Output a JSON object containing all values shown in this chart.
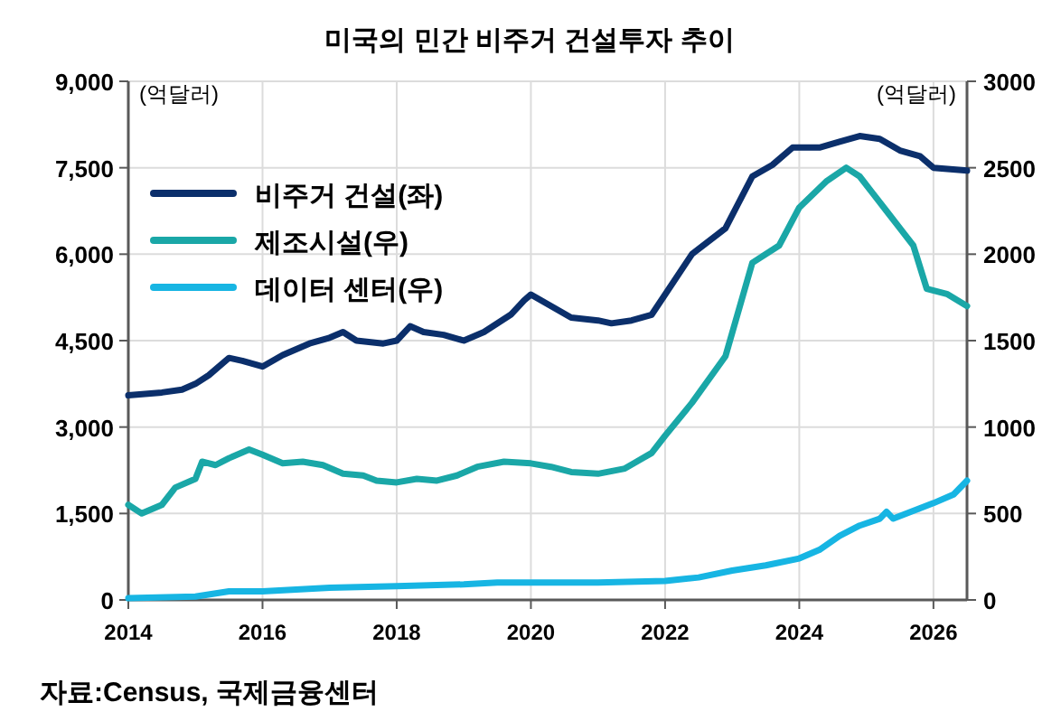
{
  "chart_data": {
    "type": "line",
    "title": "미국의 민간 비주거 건설투자 추이",
    "ylabel": "(억달러)",
    "y2label": "(억달러)",
    "annotations": [
      "자료:Census, 국제금융센터"
    ],
    "xlim": [
      2014,
      2026.5
    ],
    "xticks": [
      2014,
      2016,
      2018,
      2020,
      2022,
      2024,
      2026
    ],
    "ylim": [
      0,
      9000
    ],
    "yticks": [
      0,
      {
        "value": 1500,
        "label": "1,500"
      },
      {
        "value": 3000,
        "label": "3,000"
      },
      {
        "value": 4500,
        "label": "4,500"
      },
      {
        "value": 6000,
        "label": "6,000"
      },
      {
        "value": 7500,
        "label": "7,500"
      },
      {
        "value": 9000,
        "label": "9,000"
      }
    ],
    "y2lim": [
      0,
      3000
    ],
    "y2ticks": [
      0,
      500,
      1000,
      1500,
      2000,
      2500,
      3000
    ],
    "grid": true,
    "legend": "top left",
    "marker": "none",
    "line_style": "solid",
    "series": [
      {
        "name": "비주거 건설(좌)",
        "color": "#0b2f6b",
        "axis": "y",
        "x": [
          2014,
          2014.5,
          2014.8,
          2015.0,
          2015.2,
          2015.5,
          2015.7,
          2016.0,
          2016.3,
          2016.7,
          2017.0,
          2017.2,
          2017.4,
          2017.8,
          2018.0,
          2018.2,
          2018.4,
          2018.7,
          2019.0,
          2019.3,
          2019.7,
          2019.9,
          2020.0,
          2020.3,
          2020.6,
          2021.0,
          2021.2,
          2021.5,
          2021.8,
          2022.0,
          2022.4,
          2022.9,
          2023.3,
          2023.6,
          2023.9,
          2024.3,
          2024.6,
          2024.9,
          2025.2,
          2025.5,
          2025.8,
          2026.0,
          2026.5
        ],
        "values": [
          3550,
          3600,
          3650,
          3750,
          3900,
          4200,
          4150,
          4050,
          4250,
          4450,
          4550,
          4650,
          4500,
          4450,
          4500,
          4750,
          4650,
          4600,
          4500,
          4650,
          4950,
          5200,
          5300,
          5100,
          4900,
          4850,
          4800,
          4850,
          4950,
          5300,
          6000,
          6450,
          7350,
          7550,
          7850,
          7850,
          7950,
          8050,
          8000,
          7800,
          7700,
          7500,
          7450
        ]
      },
      {
        "name": "제조시설(우)",
        "color": "#1aa7a7",
        "axis": "y2",
        "x": [
          2014,
          2014.2,
          2014.5,
          2014.7,
          2015.0,
          2015.1,
          2015.3,
          2015.5,
          2015.8,
          2016.0,
          2016.3,
          2016.6,
          2016.9,
          2017.2,
          2017.5,
          2017.7,
          2018.0,
          2018.3,
          2018.6,
          2018.9,
          2019.2,
          2019.6,
          2020.0,
          2020.3,
          2020.6,
          2021.0,
          2021.4,
          2021.8,
          2022.0,
          2022.4,
          2022.9,
          2023.3,
          2023.7,
          2024.0,
          2024.4,
          2024.7,
          2024.9,
          2025.1,
          2025.3,
          2025.7,
          2025.9,
          2026.2,
          2026.5
        ],
        "values": [
          550,
          500,
          550,
          650,
          700,
          800,
          780,
          820,
          870,
          840,
          790,
          800,
          780,
          730,
          720,
          690,
          680,
          700,
          690,
          720,
          770,
          800,
          790,
          770,
          740,
          730,
          760,
          850,
          950,
          1140,
          1410,
          1950,
          2050,
          2270,
          2420,
          2500,
          2450,
          2350,
          2250,
          2050,
          1800,
          1770,
          1700
        ]
      },
      {
        "name": "데이터 센터(우)",
        "color": "#17b5e3",
        "axis": "y2",
        "x": [
          2014,
          2015,
          2015.5,
          2016,
          2017,
          2018,
          2019,
          2019.5,
          2020,
          2021,
          2022,
          2022.5,
          2023,
          2023.5,
          2024,
          2024.3,
          2024.6,
          2024.9,
          2025.2,
          2025.3,
          2025.4,
          2025.8,
          2026.0,
          2026.3,
          2026.5
        ],
        "values": [
          10,
          20,
          50,
          50,
          70,
          80,
          90,
          100,
          100,
          100,
          110,
          130,
          170,
          200,
          240,
          290,
          370,
          430,
          470,
          510,
          470,
          530,
          560,
          610,
          690
        ]
      }
    ]
  }
}
